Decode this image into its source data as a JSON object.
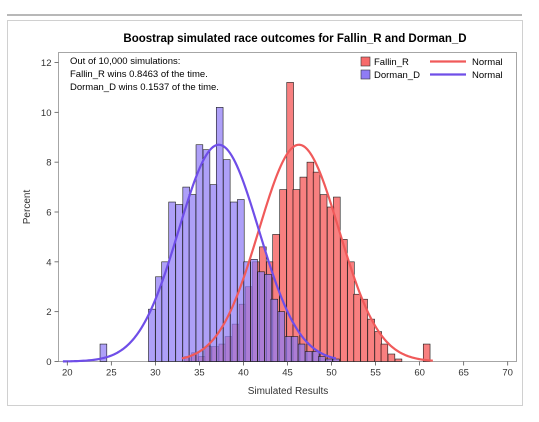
{
  "chart_data": {
    "type": "bar",
    "title": "Boostrap simulated race outcomes for Fallin_R and Dorman_D",
    "xlabel": "Simulated Results",
    "ylabel": "Percent",
    "xlim": [
      19,
      71
    ],
    "ylim": [
      0,
      12
    ],
    "x_ticks": [
      "20",
      "25",
      "30",
      "35",
      "40",
      "45",
      "50",
      "55",
      "60",
      "65",
      "70"
    ],
    "y_ticks": [
      "0",
      "2",
      "4",
      "6",
      "8",
      "10",
      "12"
    ],
    "grid": false,
    "legend_position": "top-right",
    "annotation_lines": [
      "Out of 10,000 simulations:",
      "Fallin_R wins 0.8463 of the time.",
      "Dorman_D wins 0.1537 of the time."
    ],
    "legend": [
      {
        "label": "Fallin_R",
        "kind": "bar",
        "color": "#f76a6a"
      },
      {
        "label": "Dorman_D",
        "kind": "bar",
        "color": "#8f7cf5"
      },
      {
        "label": "Normal",
        "kind": "line",
        "color": "#f05a5a"
      },
      {
        "label": "Normal",
        "kind": "line",
        "color": "#6f4ee8"
      }
    ],
    "bin_width": 0.77,
    "series": [
      {
        "name": "Fallin_R",
        "color": "#f76a6a",
        "bins": [
          {
            "x": 33.7,
            "y": 0.2
          },
          {
            "x": 34.5,
            "y": 0.35
          },
          {
            "x": 35.3,
            "y": 0.2
          },
          {
            "x": 36.0,
            "y": 0.6
          },
          {
            "x": 36.8,
            "y": 0.6
          },
          {
            "x": 37.6,
            "y": 0.7
          },
          {
            "x": 38.3,
            "y": 1.0
          },
          {
            "x": 39.1,
            "y": 1.5
          },
          {
            "x": 39.9,
            "y": 2.3
          },
          {
            "x": 40.6,
            "y": 3.0
          },
          {
            "x": 41.4,
            "y": 4.0
          },
          {
            "x": 42.2,
            "y": 4.6
          },
          {
            "x": 43.0,
            "y": 4.0
          },
          {
            "x": 43.7,
            "y": 5.1
          },
          {
            "x": 44.5,
            "y": 6.9
          },
          {
            "x": 45.3,
            "y": 11.2
          },
          {
            "x": 46.0,
            "y": 6.9
          },
          {
            "x": 46.8,
            "y": 7.4
          },
          {
            "x": 47.6,
            "y": 8.0
          },
          {
            "x": 48.3,
            "y": 7.6
          },
          {
            "x": 49.1,
            "y": 6.7
          },
          {
            "x": 49.9,
            "y": 6.2
          },
          {
            "x": 50.6,
            "y": 6.6
          },
          {
            "x": 51.4,
            "y": 4.9
          },
          {
            "x": 52.2,
            "y": 4.0
          },
          {
            "x": 52.9,
            "y": 2.7
          },
          {
            "x": 53.7,
            "y": 2.5
          },
          {
            "x": 54.5,
            "y": 1.7
          },
          {
            "x": 55.3,
            "y": 1.2
          },
          {
            "x": 56.0,
            "y": 0.7
          },
          {
            "x": 56.8,
            "y": 0.3
          },
          {
            "x": 57.6,
            "y": 0.1
          },
          {
            "x": 60.8,
            "y": 0.7
          }
        ]
      },
      {
        "name": "Dorman_D",
        "color": "#8f7cf5",
        "bins": [
          {
            "x": 24.1,
            "y": 0.7
          },
          {
            "x": 29.6,
            "y": 2.1
          },
          {
            "x": 30.4,
            "y": 3.4
          },
          {
            "x": 31.1,
            "y": 4.0
          },
          {
            "x": 31.9,
            "y": 6.4
          },
          {
            "x": 32.7,
            "y": 6.3
          },
          {
            "x": 33.5,
            "y": 7.0
          },
          {
            "x": 34.2,
            "y": 6.7
          },
          {
            "x": 35.0,
            "y": 8.7
          },
          {
            "x": 35.8,
            "y": 8.5
          },
          {
            "x": 36.6,
            "y": 7.1
          },
          {
            "x": 37.3,
            "y": 10.2
          },
          {
            "x": 38.1,
            "y": 8.1
          },
          {
            "x": 38.9,
            "y": 6.4
          },
          {
            "x": 39.7,
            "y": 6.5
          },
          {
            "x": 40.4,
            "y": 4.0
          },
          {
            "x": 41.2,
            "y": 4.1
          },
          {
            "x": 42.0,
            "y": 3.6
          },
          {
            "x": 42.8,
            "y": 3.5
          },
          {
            "x": 43.5,
            "y": 2.5
          },
          {
            "x": 44.3,
            "y": 2.0
          },
          {
            "x": 45.1,
            "y": 1.0
          },
          {
            "x": 45.8,
            "y": 1.0
          },
          {
            "x": 46.6,
            "y": 0.7
          },
          {
            "x": 47.4,
            "y": 0.4
          },
          {
            "x": 48.2,
            "y": 0.4
          },
          {
            "x": 48.9,
            "y": 0.2
          },
          {
            "x": 49.7,
            "y": 0.1
          },
          {
            "x": 50.5,
            "y": 0.1
          }
        ]
      }
    ],
    "curves": [
      {
        "name": "Normal",
        "series": "Fallin_R",
        "color": "#f05a5a",
        "mean": 46.3,
        "sd": 4.55,
        "peak": 8.7,
        "range": [
          33,
          61.5
        ]
      },
      {
        "name": "Normal",
        "series": "Dorman_D",
        "color": "#6f4ee8",
        "mean": 37.2,
        "sd": 4.55,
        "peak": 8.7,
        "range": [
          19.5,
          50.5
        ]
      }
    ]
  }
}
